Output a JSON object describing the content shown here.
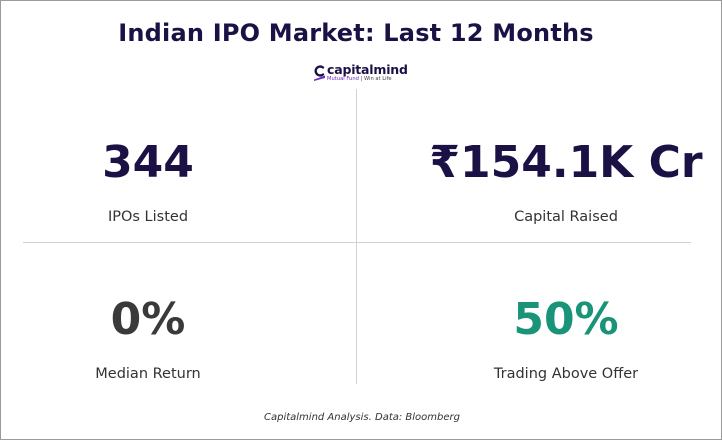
{
  "title": "Indian IPO Market: Last 12 Months",
  "logo": {
    "name": "capitalmind",
    "tagline_brand": "Mutual Fund",
    "tagline_separator": "|",
    "tagline_rest": "Win at Life",
    "mark_color": "#6b2fc2"
  },
  "stats": [
    {
      "value": "344",
      "label": "IPOs Listed",
      "color": "#1b1145"
    },
    {
      "value": "₹154.1K Cr",
      "label": "Capital Raised",
      "color": "#1b1145"
    },
    {
      "value": "0%",
      "label": "Median Return",
      "color": "#3a3a3a"
    },
    {
      "value": "50%",
      "label": "Trading Above Offer",
      "color": "#1a9478"
    }
  ],
  "footer": "Capitalmind Analysis. Data: Bloomberg"
}
